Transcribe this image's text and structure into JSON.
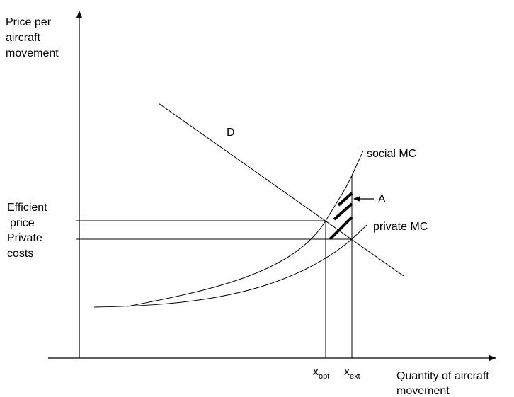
{
  "axes": {
    "y_label": [
      "Price per",
      "aircraft",
      "movement"
    ],
    "x_label": [
      "Quantity of aircraft",
      "movement"
    ]
  },
  "curves": {
    "demand": "D",
    "social_mc": "social MC",
    "private_mc": "private MC"
  },
  "area_label": "A",
  "price_levels": {
    "efficient": [
      "Efficient",
      "price"
    ],
    "private": [
      "Private",
      "costs"
    ]
  },
  "quantities": {
    "opt": {
      "base": "x",
      "sub": "opt"
    },
    "ext": {
      "base": "x",
      "sub": "ext"
    }
  }
}
